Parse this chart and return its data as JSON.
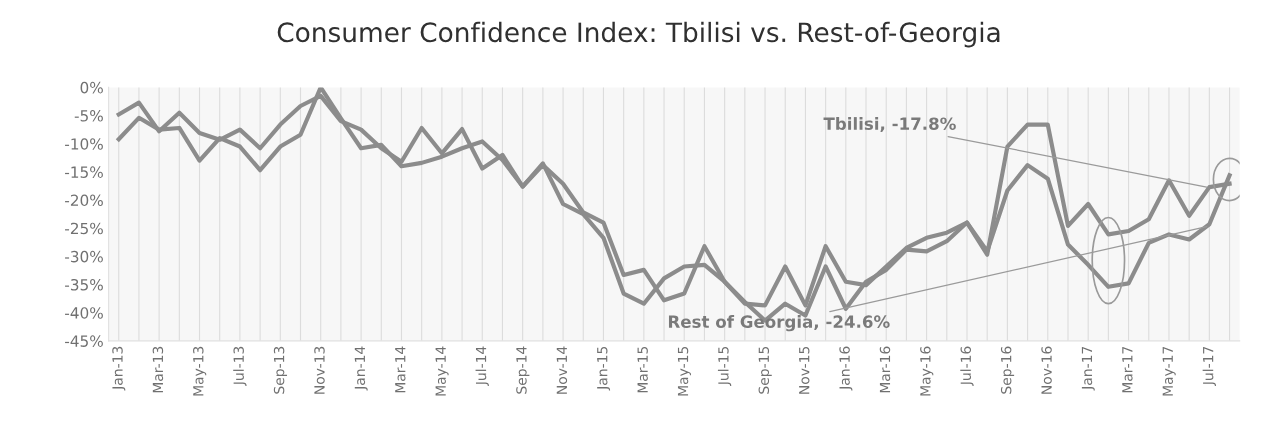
{
  "chart_data": {
    "type": "line",
    "title": "Consumer Confidence Index: Tbilisi vs. Rest-of-Georgia",
    "categories": [
      "Jan-13",
      null,
      "Mar-13",
      null,
      "May-13",
      null,
      "Jul-13",
      null,
      "Sep-13",
      null,
      "Nov-13",
      null,
      "Jan-14",
      null,
      "Mar-14",
      null,
      "May-14",
      null,
      "Jul-14",
      null,
      "Sep-14",
      null,
      "Nov-14",
      null,
      "Jan-15",
      null,
      "Mar-15",
      null,
      "May-15",
      null,
      "Jul-15",
      null,
      "Sep-15",
      null,
      "Nov-15",
      null,
      "Jan-16",
      null,
      "Mar-16",
      null,
      "May-16",
      null,
      "Jul-16",
      null,
      "Sep-16",
      null,
      "Nov-16",
      null,
      "Jan-17",
      null,
      "Mar-17",
      null,
      "May-17",
      null,
      "Jul-17",
      null
    ],
    "series": [
      {
        "color": "#8c8c8c",
        "values": [
          -4.8,
          -2.7,
          -7.8,
          -4.5,
          -8.1,
          -9.3,
          -7.5,
          -10.8,
          -6.6,
          -3.3,
          -1.5,
          -6.0,
          -7.5,
          -10.8,
          -13.2,
          -7.2,
          -11.7,
          -7.4,
          -14.4,
          -12.0,
          -17.6,
          -13.5,
          -20.7,
          -22.5,
          -26.7,
          -36.6,
          -38.4,
          -33.9,
          -31.8,
          -31.5,
          -34.5,
          -38.1,
          -41.4,
          -38.4,
          -40.5,
          -31.8,
          -39.3,
          -34.5,
          -32.4,
          -28.8,
          -29.1,
          -27.3,
          -24.0,
          -29.7,
          -10.5,
          -6.6,
          -6.6,
          -24.6,
          -20.7,
          -26.1,
          -25.5,
          -23.4,
          -16.5,
          -22.8,
          -17.7,
          -17.1
        ]
      },
      {
        "color": "#8c8c8c",
        "values": [
          -9.2,
          -5.4,
          -7.5,
          -7.2,
          -13.0,
          -9.0,
          -10.5,
          -14.7,
          -10.5,
          -8.4,
          0,
          -5.5,
          -10.8,
          -10.2,
          -14.0,
          -13.4,
          -12.3,
          -10.8,
          -9.6,
          -12.9,
          -17.6,
          -13.8,
          -17.1,
          -22.2,
          -24.0,
          -33.3,
          -32.4,
          -37.8,
          -36.6,
          -28.2,
          -34.5,
          -38.4,
          -38.7,
          -31.8,
          -38.7,
          -28.2,
          -34.5,
          -35.1,
          -31.8,
          -28.5,
          -26.7,
          -25.8,
          -24.0,
          -29.1,
          -18.3,
          -13.8,
          -16.2,
          -27.9,
          -31.5,
          -35.4,
          -34.8,
          -27.6,
          -26.1,
          -27.0,
          -24.3,
          -15.6
        ]
      }
    ],
    "ylim": [
      -45,
      0
    ],
    "yticks": [
      {
        "value": 0,
        "label": "0%"
      },
      {
        "value": -5,
        "label": "-5%"
      },
      {
        "value": -10,
        "label": "-10%"
      },
      {
        "value": -15,
        "label": "-15%"
      },
      {
        "value": -20,
        "label": "-20%"
      },
      {
        "value": -25,
        "label": "-25%"
      },
      {
        "value": -30,
        "label": "-30%"
      },
      {
        "value": -35,
        "label": "-35%"
      },
      {
        "value": -40,
        "label": "-40%"
      },
      {
        "value": -45,
        "label": "-45%"
      }
    ],
    "grid": "x",
    "line_style": "solid",
    "annotations": [
      {
        "text": "Tbilisi, -17.8%",
        "x": "Jul-17",
        "y": -17.8
      },
      {
        "text": "Rest of Georgia, -24.6%",
        "x": "Jul-17",
        "y": -24.6
      }
    ]
  }
}
